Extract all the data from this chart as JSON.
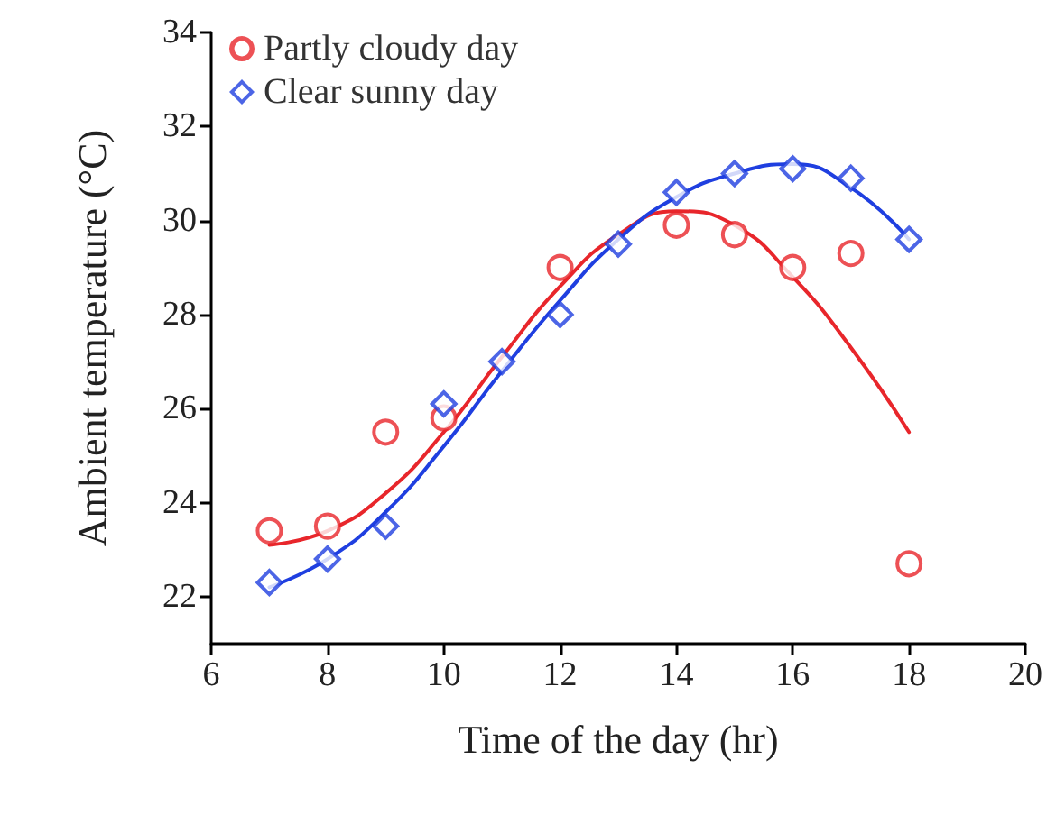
{
  "chart_data": {
    "type": "scatter",
    "xlabel": "Time of the day (hr)",
    "ylabel": "Ambient temperature (°C)",
    "xlim": [
      6,
      20
    ],
    "xticks": [
      6,
      8,
      10,
      12,
      14,
      16,
      18,
      20
    ],
    "ylim": [
      21,
      34
    ],
    "yticks": [
      22,
      24,
      26,
      28,
      30,
      32,
      34
    ],
    "grid": false,
    "legend": "top left",
    "series": [
      {
        "name": "Partly cloudy day",
        "color": "#e8262b",
        "marker": "circle",
        "x": [
          7,
          8,
          9,
          10,
          12,
          14,
          15,
          16,
          17,
          18
        ],
        "values": [
          23.4,
          23.5,
          25.5,
          25.8,
          29.0,
          29.9,
          29.7,
          29.0,
          29.3,
          22.7
        ]
      },
      {
        "name": "Clear sunny day",
        "color": "#1f3fe0",
        "marker": "diamond",
        "x": [
          7,
          8,
          9,
          10,
          11,
          12,
          13,
          14,
          15,
          16,
          17,
          18
        ],
        "values": [
          22.3,
          22.8,
          23.5,
          26.1,
          27.0,
          28.0,
          29.5,
          30.6,
          31.0,
          31.1,
          30.9,
          29.6
        ]
      },
      {
        "type": "line",
        "color": "#e8262b",
        "marker": "none",
        "x": [
          7,
          8,
          9,
          10,
          11,
          12,
          13,
          14,
          15,
          16,
          17,
          18
        ],
        "values": [
          23.1,
          23.4,
          24.2,
          25.5,
          27.1,
          28.6,
          29.7,
          30.2,
          29.9,
          28.8,
          27.3,
          25.5
        ]
      },
      {
        "type": "line",
        "color": "#1f3fe0",
        "marker": "none",
        "x": [
          7,
          8,
          9,
          10,
          11,
          12,
          13,
          14,
          15,
          16,
          17,
          18
        ],
        "values": [
          22.2,
          22.8,
          23.8,
          25.2,
          26.8,
          28.3,
          29.6,
          30.5,
          31.0,
          31.2,
          30.7,
          29.6
        ]
      }
    ]
  }
}
